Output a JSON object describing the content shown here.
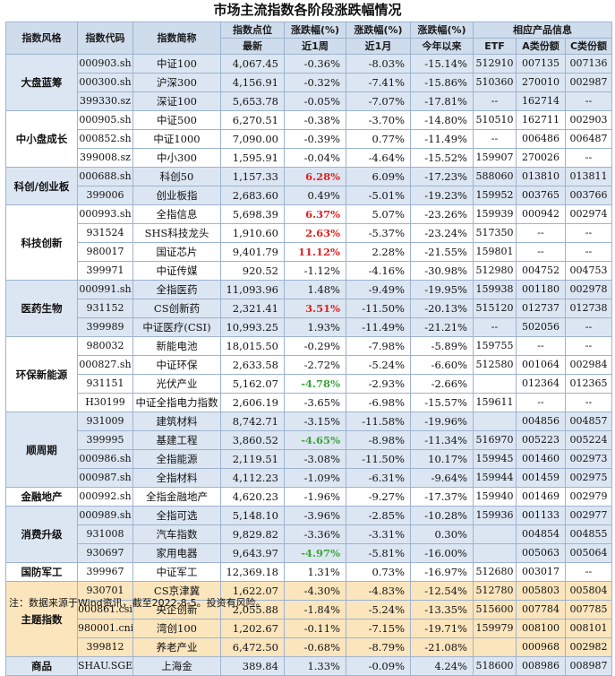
{
  "title": "市场主流指数各阶段涨跌幅情况",
  "headers": {
    "row1": [
      "指数风格",
      "指数代码",
      "指数简称",
      "指数点位",
      "涨跌幅(%)",
      "涨跌幅(%)",
      "涨跌幅(%)",
      "相应产品信息"
    ],
    "row2": [
      "最新",
      "近1周",
      "近1月",
      "今年以来",
      "ETF",
      "A类份额",
      "C类份额"
    ]
  },
  "colors": {
    "header_bg": "#cfdcec",
    "band_blue": "#dce6f2",
    "band_white": "#ffffff",
    "band_yellow": "#fbe5bd",
    "positive_red": "#e02020",
    "positive_green": "#3aa63a"
  },
  "groups": [
    {
      "name": "大盘蓝筹",
      "bg": "#dce6f2",
      "rows": [
        {
          "code": "000903.sh",
          "name": "中证100",
          "level": "4,067.45",
          "w1": "-0.36%",
          "m1": "-8.03%",
          "ytd": "-15.14%",
          "etf": "512910",
          "a": "007135",
          "c": "007136"
        },
        {
          "code": "000300.sh",
          "name": "沪深300",
          "level": "4,156.91",
          "w1": "-0.32%",
          "m1": "-7.41%",
          "ytd": "-15.86%",
          "etf": "510360",
          "a": "270010",
          "c": "002987"
        },
        {
          "code": "399330.sz",
          "name": "深证100",
          "level": "5,653.78",
          "w1": "-0.05%",
          "m1": "-7.07%",
          "ytd": "-17.81%",
          "etf": "--",
          "a": "162714",
          "c": "--"
        }
      ]
    },
    {
      "name": "中小盘成长",
      "bg": "#ffffff",
      "rows": [
        {
          "code": "000905.sh",
          "name": "中证500",
          "level": "6,270.51",
          "w1": "-0.38%",
          "m1": "-3.70%",
          "ytd": "-14.80%",
          "etf": "510510",
          "a": "162711",
          "c": "002903"
        },
        {
          "code": "000852.sh",
          "name": "中证1000",
          "level": "7,090.00",
          "w1": "-0.39%",
          "m1": "0.77%",
          "ytd": "-11.49%",
          "etf": "--",
          "a": "006486",
          "c": "006487"
        },
        {
          "code": "399008.sz",
          "name": "中小300",
          "level": "1,595.91",
          "w1": "-0.04%",
          "m1": "-4.64%",
          "ytd": "-15.52%",
          "etf": "159907",
          "a": "270026",
          "c": "--"
        }
      ]
    },
    {
      "name": "科创/创业板",
      "bg": "#dce6f2",
      "rows": [
        {
          "code": "000688.sh",
          "name": "科创50",
          "level": "1,157.33",
          "w1": "6.28%",
          "w1c": "pos",
          "m1": "6.09%",
          "ytd": "-17.23%",
          "etf": "588060",
          "a": "013810",
          "c": "013811"
        },
        {
          "code": "399006",
          "name": "创业板指",
          "level": "2,683.60",
          "w1": "0.49%",
          "m1": "-5.01%",
          "ytd": "-19.23%",
          "etf": "159952",
          "a": "003765",
          "c": "003766"
        }
      ]
    },
    {
      "name": "科技创新",
      "bg": "#ffffff",
      "rows": [
        {
          "code": "000993.sh",
          "name": "全指信息",
          "level": "5,698.39",
          "w1": "6.37%",
          "w1c": "pos",
          "m1": "5.07%",
          "ytd": "-23.26%",
          "etf": "159939",
          "a": "000942",
          "c": "002974"
        },
        {
          "code": "931524",
          "name": "SHS科技龙头",
          "level": "1,910.60",
          "w1": "2.63%",
          "w1c": "pos",
          "m1": "-5.37%",
          "ytd": "-23.24%",
          "etf": "517350",
          "a": "--",
          "c": "--"
        },
        {
          "code": "980017",
          "name": "国证芯片",
          "level": "9,401.79",
          "w1": "11.12%",
          "w1c": "pos",
          "m1": "2.28%",
          "ytd": "-21.55%",
          "etf": "159801",
          "a": "--",
          "c": "--"
        },
        {
          "code": "399971",
          "name": "中证传媒",
          "level": "920.52",
          "w1": "-1.12%",
          "m1": "-4.16%",
          "ytd": "-30.98%",
          "etf": "512980",
          "a": "004752",
          "c": "004753"
        }
      ]
    },
    {
      "name": "医药生物",
      "bg": "#dce6f2",
      "rows": [
        {
          "code": "000991.sh",
          "name": "全指医药",
          "level": "11,093.96",
          "w1": "1.48%",
          "m1": "-9.49%",
          "ytd": "-19.95%",
          "etf": "159938",
          "a": "001180",
          "c": "002978"
        },
        {
          "code": "931152",
          "name": "CS创新药",
          "level": "2,321.41",
          "w1": "3.51%",
          "w1c": "pos",
          "m1": "-11.50%",
          "ytd": "-20.13%",
          "etf": "515120",
          "a": "012737",
          "c": "012738"
        },
        {
          "code": "399989",
          "name": "中证医疗(CSI)",
          "level": "10,993.25",
          "w1": "1.93%",
          "m1": "-11.49%",
          "ytd": "-21.21%",
          "etf": "--",
          "a": "502056",
          "c": "--"
        }
      ]
    },
    {
      "name": "环保新能源",
      "bg": "#ffffff",
      "rows": [
        {
          "code": "980032",
          "name": "新能电池",
          "level": "18,015.50",
          "w1": "-0.29%",
          "m1": "-7.98%",
          "ytd": "-5.89%",
          "etf": "159755",
          "a": "--",
          "c": "--"
        },
        {
          "code": "000827.sh",
          "name": "中证环保",
          "level": "2,633.58",
          "w1": "-2.72%",
          "m1": "-5.24%",
          "ytd": "-6.60%",
          "etf": "512580",
          "a": "001064",
          "c": "002984"
        },
        {
          "code": "931151",
          "name": "光伏产业",
          "level": "5,162.07",
          "w1": "-4.78%",
          "w1c": "grn",
          "m1": "-2.93%",
          "ytd": "-2.66%",
          "etf": "",
          "a": "012364",
          "c": "012365"
        },
        {
          "code": "H30199",
          "name": "中证全指电力指数",
          "level": "2,606.19",
          "w1": "-3.65%",
          "m1": "-6.98%",
          "ytd": "-15.57%",
          "etf": "159611",
          "a": "--",
          "c": "--"
        }
      ]
    },
    {
      "name": "顺周期",
      "bg": "#dce6f2",
      "rows": [
        {
          "code": "931009",
          "name": "建筑材料",
          "level": "8,742.71",
          "w1": "-3.15%",
          "m1": "-11.58%",
          "ytd": "-19.96%",
          "etf": "",
          "a": "004856",
          "c": "004857"
        },
        {
          "code": "399995",
          "name": "基建工程",
          "level": "3,860.52",
          "w1": "-4.65%",
          "w1c": "grn",
          "m1": "-8.98%",
          "ytd": "-11.34%",
          "etf": "516970",
          "a": "005223",
          "c": "005224"
        },
        {
          "code": "000986.sh",
          "name": "全指能源",
          "level": "2,119.51",
          "w1": "-3.08%",
          "m1": "-11.50%",
          "ytd": "10.17%",
          "etf": "159945",
          "a": "001460",
          "c": "002973"
        },
        {
          "code": "000987.sh",
          "name": "全指材料",
          "level": "4,112.23",
          "w1": "-1.09%",
          "m1": "-6.31%",
          "ytd": "-9.64%",
          "etf": "159944",
          "a": "001459",
          "c": "002975"
        }
      ]
    },
    {
      "name": "金融地产",
      "bg": "#ffffff",
      "rows": [
        {
          "code": "000992.sh",
          "name": "全指金融地产",
          "level": "4,620.23",
          "w1": "-1.96%",
          "m1": "-9.27%",
          "ytd": "-17.37%",
          "etf": "159940",
          "a": "001469",
          "c": "002979"
        }
      ]
    },
    {
      "name": "消费升级",
      "bg": "#dce6f2",
      "rows": [
        {
          "code": "000989.sh",
          "name": "全指可选",
          "level": "5,148.10",
          "w1": "-3.96%",
          "m1": "-2.85%",
          "ytd": "-10.28%",
          "etf": "159936",
          "a": "001133",
          "c": "002977"
        },
        {
          "code": "931008",
          "name": "汽车指数",
          "level": "9,829.82",
          "w1": "-3.36%",
          "m1": "-3.31%",
          "ytd": "0.30%",
          "etf": "",
          "a": "004854",
          "c": "004855"
        },
        {
          "code": "930697",
          "name": "家用电器",
          "level": "9,643.97",
          "w1": "-4.97%",
          "w1c": "grn",
          "m1": "-5.81%",
          "ytd": "-16.00%",
          "etf": "",
          "a": "005063",
          "c": "005064"
        }
      ]
    },
    {
      "name": "国防军工",
      "bg": "#ffffff",
      "rows": [
        {
          "code": "399967",
          "name": "中证军工",
          "level": "12,369.18",
          "w1": "1.31%",
          "m1": "0.73%",
          "ytd": "-16.97%",
          "etf": "512680",
          "a": "003017",
          "c": "--"
        }
      ]
    },
    {
      "name": "主题指数",
      "bg": "#fbe5bd",
      "rows": [
        {
          "code": "930701",
          "name": "CS京津冀",
          "level": "1,622.07",
          "w1": "-4.30%",
          "m1": "-4.83%",
          "ytd": "-12.54%",
          "etf": "512780",
          "a": "005803",
          "c": "005804"
        },
        {
          "code": "000861.csi",
          "name": "央企创新",
          "level": "2,055.88",
          "w1": "-1.84%",
          "m1": "-5.24%",
          "ytd": "-13.35%",
          "etf": "515600",
          "a": "007784",
          "c": "007785"
        },
        {
          "code": "980001.cni",
          "name": "湾创100",
          "level": "1,202.67",
          "w1": "-0.11%",
          "m1": "-7.15%",
          "ytd": "-19.71%",
          "etf": "159979",
          "a": "008100",
          "c": "008101"
        },
        {
          "code": "399812",
          "name": "养老产业",
          "level": "6,472.50",
          "w1": "-0.68%",
          "m1": "-8.79%",
          "ytd": "-21.08%",
          "etf": "",
          "a": "000968",
          "c": "002982"
        }
      ]
    },
    {
      "name": "商品",
      "bg": "#dce6f2",
      "rows": [
        {
          "code": "SHAU.SGE",
          "name": "上海金",
          "level": "389.84",
          "w1": "1.33%",
          "m1": "-0.09%",
          "ytd": "4.24%",
          "etf": "518600",
          "a": "008986",
          "c": "008987"
        }
      ]
    }
  ],
  "footnote": "注：数据来源于Wind资讯，截至2022-8-5。投资有风险。"
}
